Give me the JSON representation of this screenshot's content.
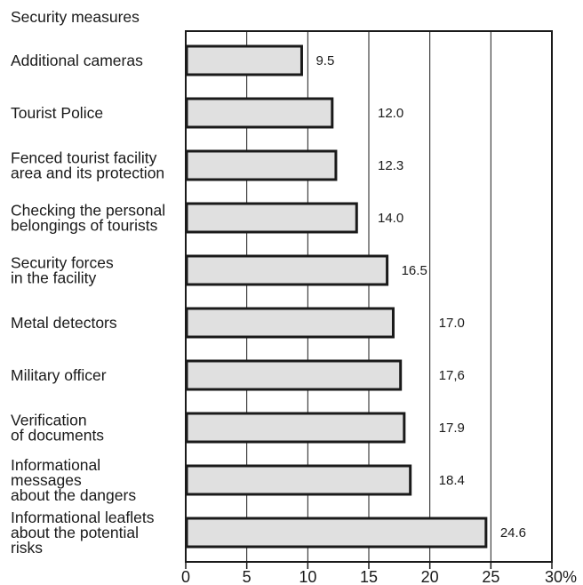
{
  "chart_data": {
    "type": "bar",
    "orientation": "horizontal",
    "title": "Security measures",
    "categories": [
      [
        "Additional cameras"
      ],
      [
        "Tourist Police"
      ],
      [
        "Fenced tourist facility",
        "area and its protection"
      ],
      [
        "Checking the personal",
        "belongings of tourists"
      ],
      [
        "Security forces",
        "in the facility"
      ],
      [
        "Metal  detectors"
      ],
      [
        "Military officer"
      ],
      [
        "Verification",
        "of documents"
      ],
      [
        "Informational",
        "messages",
        "about the dangers"
      ],
      [
        "Informational leaflets",
        "about the potential",
        "risks"
      ]
    ],
    "values": [
      9.5,
      12.0,
      12.3,
      14.0,
      16.5,
      17.0,
      17.6,
      17.9,
      18.4,
      24.6
    ],
    "value_labels": [
      "9.5",
      "12.0",
      "12.3",
      "14.0",
      "16.5",
      "17.0",
      "17,6",
      "17.9",
      "18.4",
      "24.6"
    ],
    "xlim": [
      0,
      30
    ],
    "xticks": [
      0,
      5,
      10,
      15,
      20,
      25,
      30
    ],
    "xtick_labels": [
      "0",
      "5",
      "10",
      "15",
      "20",
      "25",
      "30%"
    ],
    "grid": true,
    "bar_fill": "#e0e0e0",
    "bar_stroke": "#1a1a1a",
    "xlabel": "",
    "ylabel": ""
  }
}
